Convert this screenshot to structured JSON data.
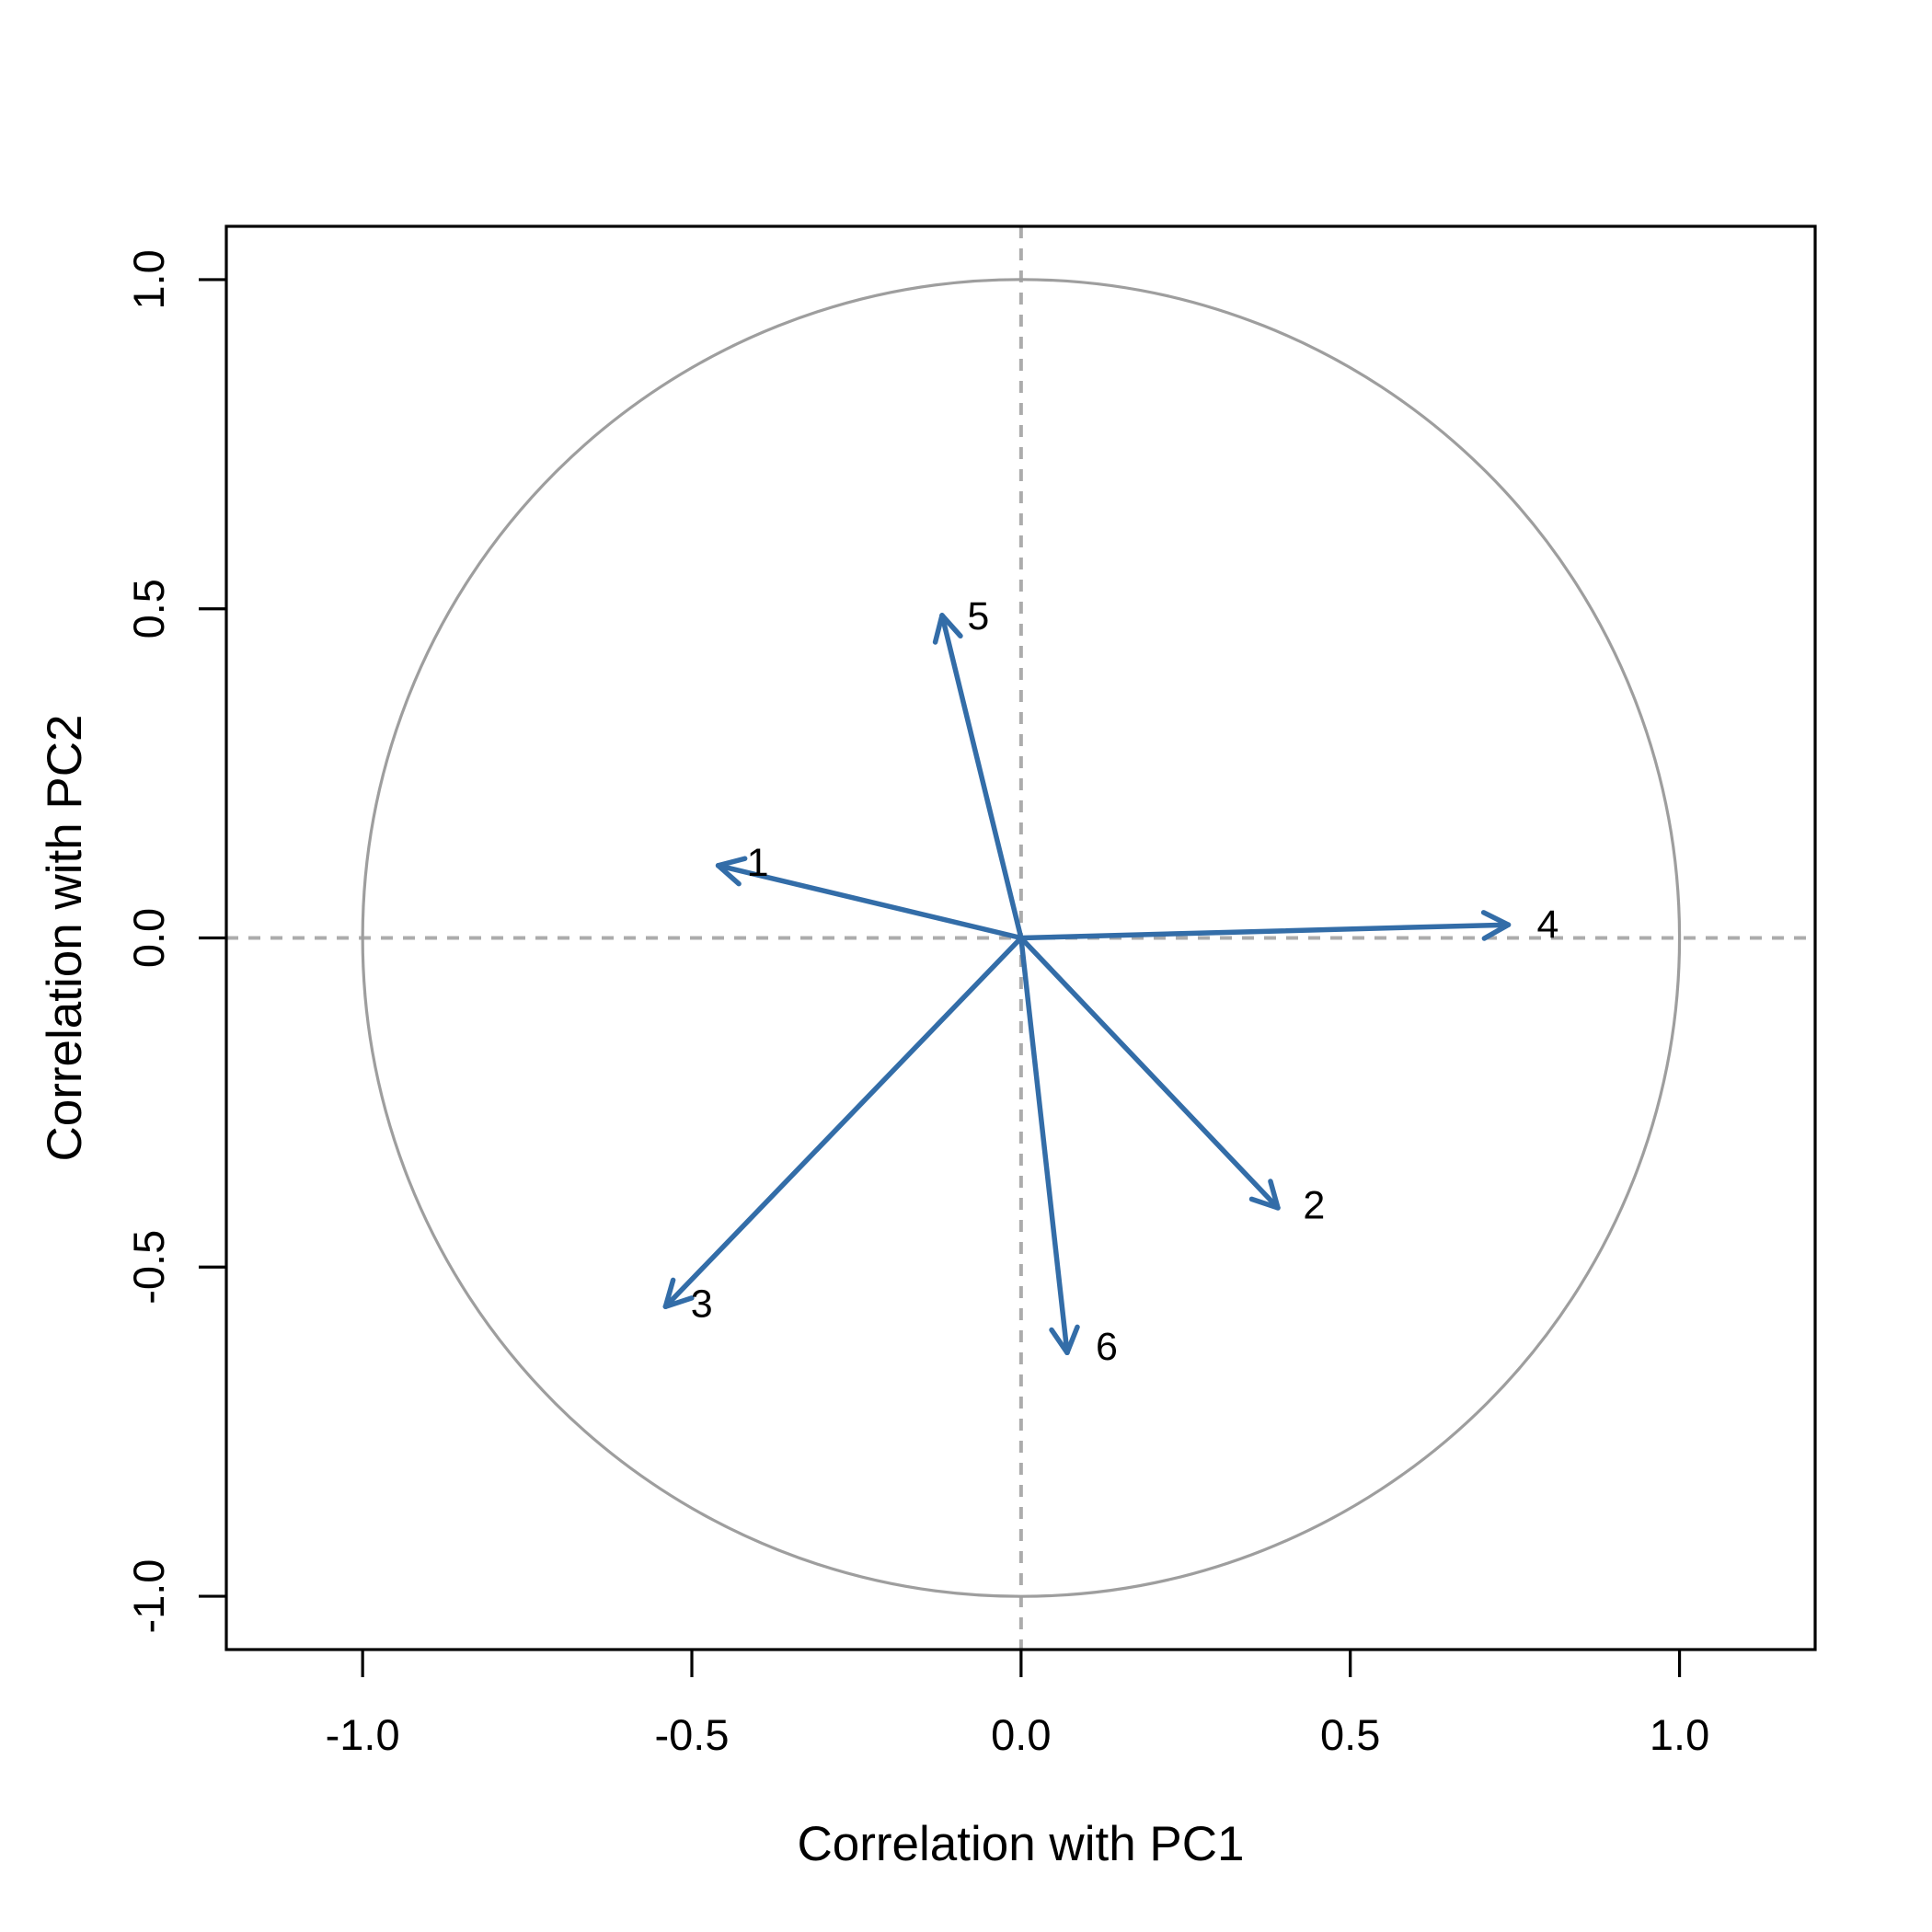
{
  "figure": {
    "kind": "R base-graphics PCA correlation circle plot",
    "background": "#ffffff"
  },
  "chart_data": {
    "type": "scatter",
    "subtype": "pca-correlation-circle-arrow-plot",
    "title": "",
    "xlabel": "Correlation with PC1",
    "ylabel": "Correlation with PC2",
    "xlim": [
      -1.207,
      1.206
    ],
    "ylim": [
      -1.081,
      1.081
    ],
    "x_ticks": [
      -1.0,
      -0.5,
      0.0,
      0.5,
      1.0
    ],
    "y_ticks": [
      -1.0,
      -0.5,
      0.0,
      0.5,
      1.0
    ],
    "x_tick_labels": [
      "-1.0",
      "-0.5",
      "0.0",
      "0.5",
      "1.0"
    ],
    "y_tick_labels": [
      "-1.0",
      "-0.5",
      "0.0",
      "0.5",
      "1.0"
    ],
    "grid": "off",
    "legend": "none",
    "unit_circle": {
      "center_x": 0,
      "center_y": 0,
      "radius": 1.0
    },
    "crosshair": {
      "vertical_x": 0.0,
      "horizontal_y": 0.0,
      "style": "dashed"
    },
    "series": [
      {
        "name": "variable-loadings-arrows",
        "points": [
          {
            "label": "1",
            "x": -0.46,
            "y": 0.11,
            "label_x": -0.4,
            "label_y": 0.115
          },
          {
            "label": "2",
            "x": 0.39,
            "y": -0.41,
            "label_x": 0.445,
            "label_y": -0.405
          },
          {
            "label": "3",
            "x": -0.54,
            "y": -0.56,
            "label_x": -0.485,
            "label_y": -0.555
          },
          {
            "label": "4",
            "x": 0.74,
            "y": 0.02,
            "label_x": 0.8,
            "label_y": 0.022
          },
          {
            "label": "5",
            "x": -0.12,
            "y": 0.49,
            "label_x": -0.065,
            "label_y": 0.49
          },
          {
            "label": "6",
            "x": 0.07,
            "y": -0.63,
            "label_x": 0.13,
            "label_y": -0.62
          }
        ]
      }
    ],
    "colors": {
      "arrow": "#336DA8",
      "circle_stroke": "#9E9E9E",
      "dashed_line": "#ACACAC",
      "axis_stroke": "#000000",
      "text": "#000000",
      "background": "#FFFFFF"
    }
  }
}
